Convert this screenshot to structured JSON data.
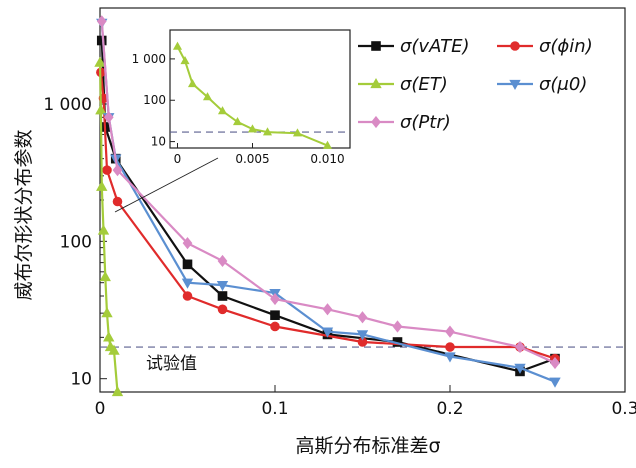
{
  "chart_data": {
    "type": "line",
    "xlabel": "高斯分布标准差σ",
    "ylabel": "威布尔形状分布参数",
    "x_ticks": [
      "0",
      "0.1",
      "0.2",
      "0.3"
    ],
    "y_ticks": [
      "10",
      "100",
      "1 000"
    ],
    "xlim": [
      0,
      0.3
    ],
    "ylim": [
      8,
      5000
    ],
    "y_scale": "log",
    "grid": false,
    "legend_position": "top-right",
    "reference_line": {
      "y": 17,
      "label": "试验值"
    },
    "series": [
      {
        "name": "σ(v_ATE)",
        "legend_label": "σ(vATE)",
        "color": "#111111",
        "marker": "square",
        "x": [
          0.001,
          0.003,
          0.009,
          0.05,
          0.07,
          0.1,
          0.13,
          0.17,
          0.24,
          0.26
        ],
        "y": [
          2900,
          680,
          400,
          68,
          40,
          29,
          21,
          18.5,
          11.3,
          14
        ]
      },
      {
        "name": "σ(ϕ_in)",
        "legend_label": "σ(ϕin)",
        "color": "#e02b2b",
        "marker": "circle",
        "x": [
          0.0005,
          0.002,
          0.004,
          0.01,
          0.05,
          0.07,
          0.1,
          0.15,
          0.2,
          0.24,
          0.26
        ],
        "y": [
          1700,
          1100,
          330,
          195,
          40,
          32,
          24,
          18.5,
          17,
          17,
          14
        ]
      },
      {
        "name": "σ(E_T)",
        "legend_label": "σ(ET)",
        "color": "#a4cc3a",
        "marker": "triangle-up",
        "x": [
          0.0,
          0.0005,
          0.001,
          0.002,
          0.003,
          0.004,
          0.005,
          0.006,
          0.008,
          0.01
        ],
        "y": [
          2000,
          900,
          250,
          120,
          55,
          30,
          20,
          17,
          16,
          8
        ]
      },
      {
        "name": "σ(μ_0)",
        "legend_label": "σ(μ0)",
        "color": "#5b8fd1",
        "marker": "triangle-down",
        "x": [
          0.001,
          0.005,
          0.009,
          0.05,
          0.07,
          0.1,
          0.13,
          0.15,
          0.2,
          0.24,
          0.26
        ],
        "y": [
          3900,
          800,
          400,
          50,
          48,
          42,
          22,
          21,
          14.5,
          12,
          9.5
        ]
      },
      {
        "name": "σ(P_tr)",
        "legend_label": "σ(Ptr)",
        "color": "#d98ac4",
        "marker": "diamond",
        "x": [
          0.001,
          0.005,
          0.01,
          0.05,
          0.07,
          0.1,
          0.13,
          0.15,
          0.17,
          0.2,
          0.24,
          0.26
        ],
        "y": [
          4000,
          800,
          330,
          97,
          72,
          38,
          32,
          28,
          24,
          22,
          17,
          13
        ]
      }
    ],
    "inset": {
      "series": "σ(E_T)",
      "x_ticks": [
        "0",
        "0.005",
        "0.010"
      ],
      "y_ticks": [
        "10",
        "100",
        "1 000"
      ],
      "xlim": [
        -0.0005,
        0.0115
      ],
      "ylim": [
        7,
        5000
      ],
      "y_scale": "log",
      "reference_y": 17
    }
  }
}
